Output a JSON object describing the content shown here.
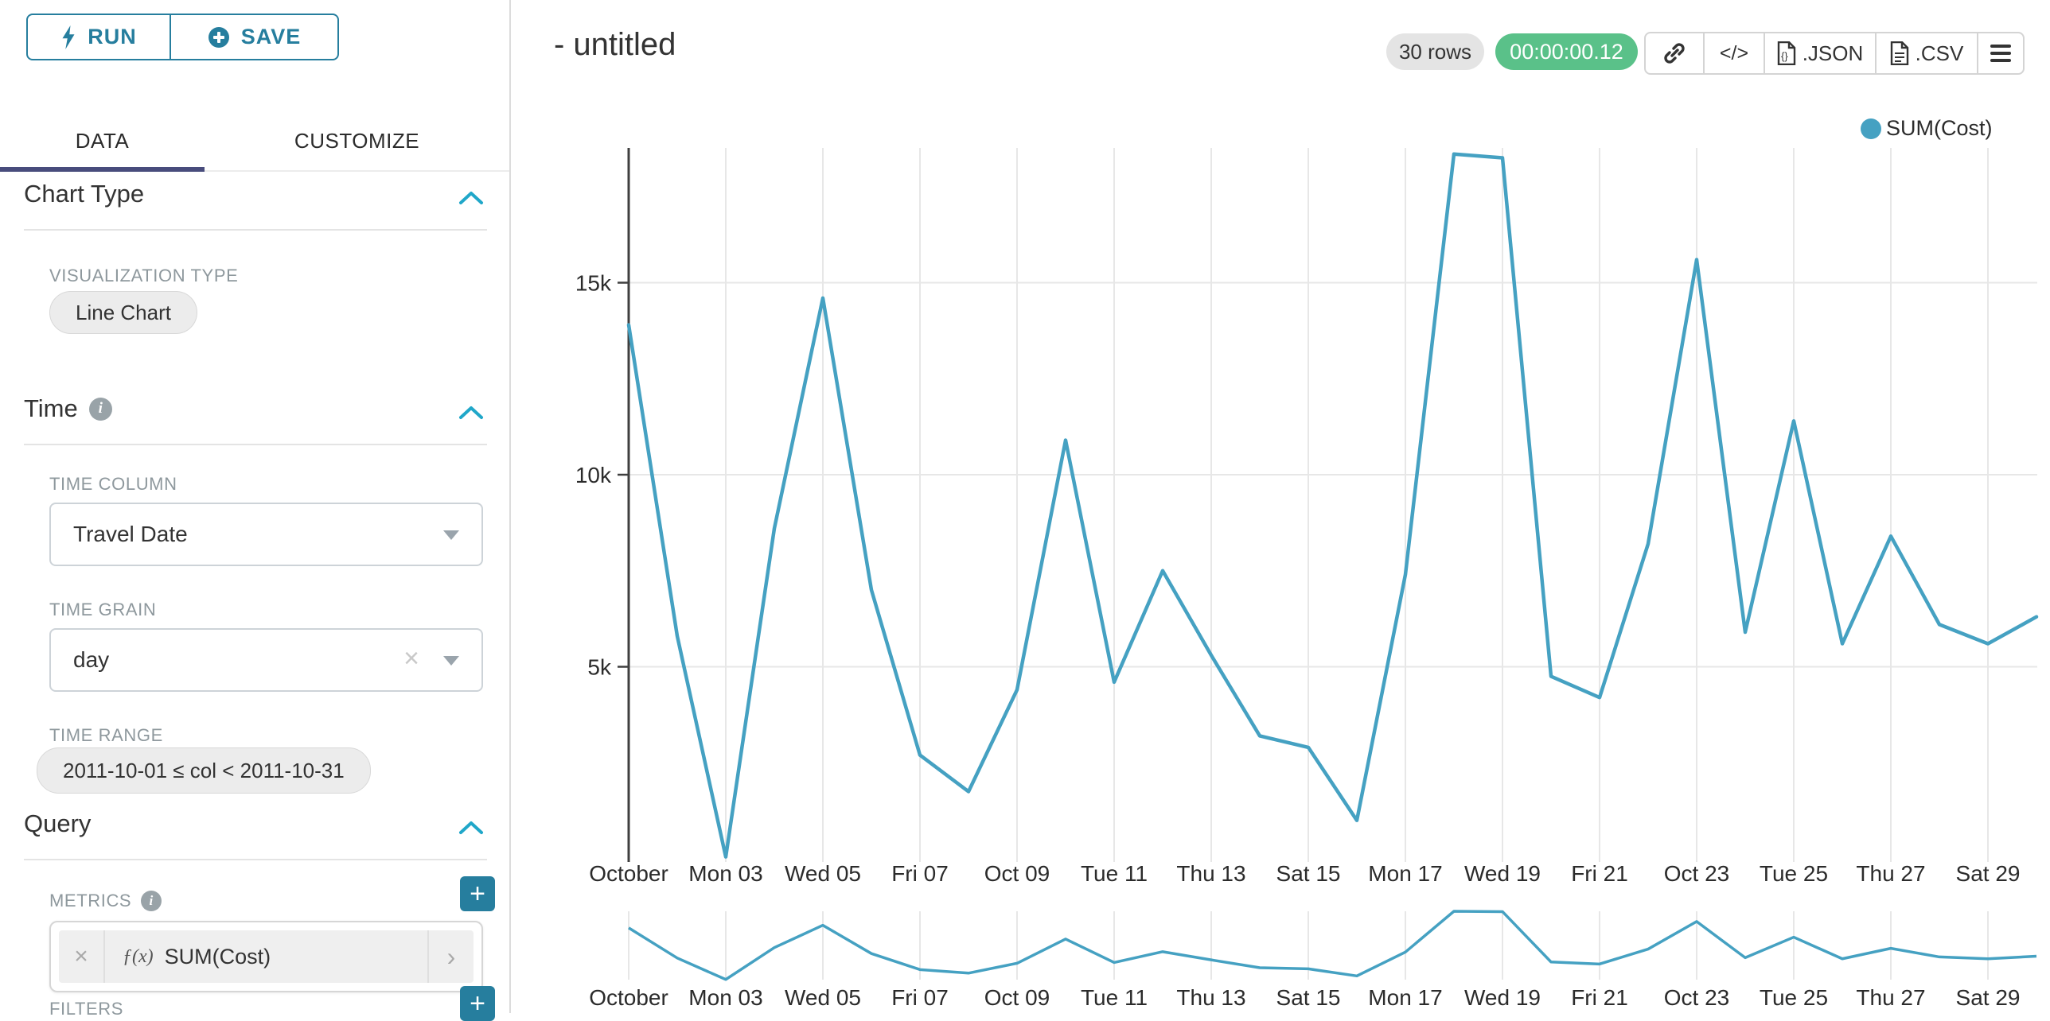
{
  "accent_color": "#267e9e",
  "sidebar": {
    "run_label": "RUN",
    "save_label": "SAVE",
    "tabs": [
      {
        "label": "DATA",
        "active": true
      },
      {
        "label": "CUSTOMIZE",
        "active": false
      }
    ],
    "chart_type": {
      "title": "Chart Type",
      "viz_type_label": "VISUALIZATION TYPE",
      "viz_type_value": "Line Chart"
    },
    "time": {
      "title": "Time",
      "time_column_label": "TIME COLUMN",
      "time_column_value": "Travel Date",
      "time_grain_label": "TIME GRAIN",
      "time_grain_value": "day",
      "time_range_label": "TIME RANGE",
      "time_range_value": "2011-10-01 ≤ col < 2011-10-31"
    },
    "query": {
      "title": "Query",
      "metrics_label": "METRICS",
      "metric_fx": "ƒ(x)",
      "metric_value": "SUM(Cost)",
      "filters_label": "FILTERS"
    }
  },
  "icons": {
    "code_glyph": "</>",
    "plus_glyph": "+",
    "clear_glyph": "×",
    "chevron_right_glyph": "›"
  },
  "header": {
    "title": "- untitled",
    "row_count": "30 rows",
    "timer": "00:00:00.12",
    "json_label": ".JSON",
    "csv_label": ".CSV"
  },
  "chart_data": {
    "type": "line",
    "title": "untitled",
    "legend_position": "top-right",
    "grid": true,
    "line_color": "#45a1c2",
    "has_context_brush": true,
    "ylim": [
      0,
      18600
    ],
    "yticks": [
      {
        "label": "5k",
        "value": 5000
      },
      {
        "label": "10k",
        "value": 10000
      },
      {
        "label": "15k",
        "value": 15000
      }
    ],
    "xtick_labels": [
      "October",
      "Mon 03",
      "Wed 05",
      "Fri 07",
      "Oct 09",
      "Tue 11",
      "Thu 13",
      "Sat 15",
      "Mon 17",
      "Wed 19",
      "Fri 21",
      "Oct 23",
      "Tue 25",
      "Thu 27",
      "Sat 29"
    ],
    "x": [
      "2011-10-01",
      "2011-10-02",
      "2011-10-03",
      "2011-10-04",
      "2011-10-05",
      "2011-10-06",
      "2011-10-07",
      "2011-10-08",
      "2011-10-09",
      "2011-10-10",
      "2011-10-11",
      "2011-10-12",
      "2011-10-13",
      "2011-10-14",
      "2011-10-15",
      "2011-10-16",
      "2011-10-17",
      "2011-10-18",
      "2011-10-19",
      "2011-10-20",
      "2011-10-21",
      "2011-10-22",
      "2011-10-23",
      "2011-10-24",
      "2011-10-25",
      "2011-10-26",
      "2011-10-27",
      "2011-10-28",
      "2011-10-29",
      "2011-10-30"
    ],
    "series": [
      {
        "name": "SUM(Cost)",
        "values": [
          13900,
          5800,
          50,
          8600,
          14600,
          7000,
          2700,
          1750,
          4400,
          10900,
          4600,
          7500,
          5300,
          3200,
          2900,
          1000,
          7400,
          18350,
          18250,
          4750,
          4200,
          8200,
          15600,
          5900,
          11400,
          5600,
          8400,
          6100,
          5600,
          6300
        ]
      }
    ]
  }
}
